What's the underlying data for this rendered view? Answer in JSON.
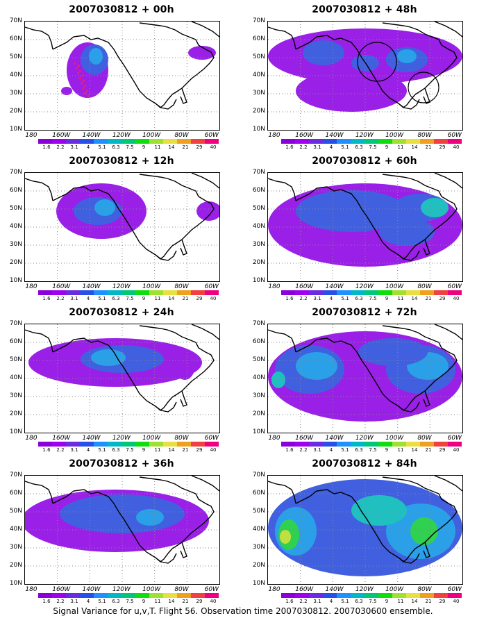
{
  "caption": "Signal Variance for u,v,T. Flight 56. Observation time 2007030812. 2007030600 ensemble.",
  "panels": [
    {
      "title": "2007030812 + 00h"
    },
    {
      "title": "2007030812 + 48h"
    },
    {
      "title": "2007030812 + 12h"
    },
    {
      "title": "2007030812 + 60h"
    },
    {
      "title": "2007030812 + 24h"
    },
    {
      "title": "2007030812 + 72h"
    },
    {
      "title": "2007030812 + 36h"
    },
    {
      "title": "2007030812 + 84h"
    }
  ],
  "lat_labels": [
    "70N",
    "60N",
    "50N",
    "40N",
    "30N",
    "20N",
    "10N"
  ],
  "lon_labels": [
    "180",
    "160W",
    "140W",
    "120W",
    "100W",
    "80W",
    "60W"
  ],
  "colorbar": {
    "labels": [
      "1.6",
      "2.2",
      "3.1",
      "4",
      "5.1",
      "6.3",
      "7.5",
      "9",
      "11",
      "14",
      "21",
      "29",
      "40"
    ],
    "colors": [
      "#8b00d8",
      "#a000f0",
      "#6a2ce0",
      "#2850e8",
      "#1e90ff",
      "#00b8c8",
      "#00c878",
      "#10dd10",
      "#a0e030",
      "#e8e040",
      "#f0a020",
      "#f04040",
      "#f00080"
    ]
  },
  "fill_colors": {
    "low": "#9a20e8",
    "mid": "#4060e0",
    "high": "#2aa0e8",
    "cyan": "#20c0c0",
    "green": "#30d050",
    "yellow": "#c0e040"
  }
}
